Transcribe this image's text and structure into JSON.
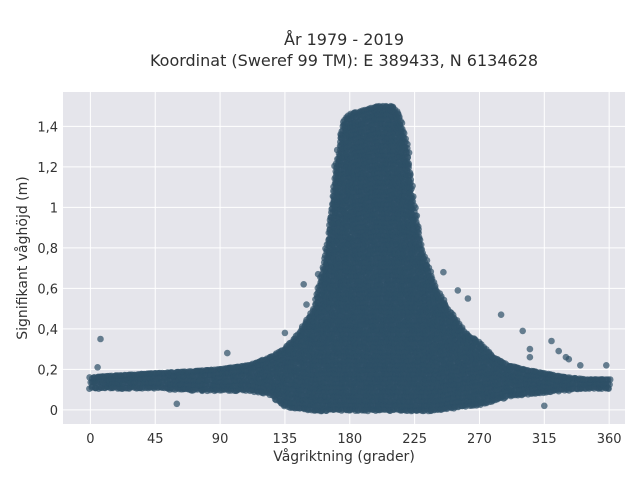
{
  "chart_data": {
    "type": "scatter",
    "title": "År 1979 - 2019",
    "subtitle": "Koordinat (Sweref 99 TM): E 389433, N 6134628",
    "xlabel": "Vågriktning (grader)",
    "ylabel": "Signifikant våghöjd (m)",
    "xlim": [
      -19,
      371
    ],
    "ylim": [
      -0.07,
      1.57
    ],
    "x_ticks": [
      0,
      45,
      90,
      135,
      180,
      225,
      270,
      315,
      360
    ],
    "x_tick_labels": [
      "0",
      "45",
      "90",
      "135",
      "180",
      "225",
      "270",
      "315",
      "360"
    ],
    "y_ticks": [
      0,
      0.2,
      0.4,
      0.6,
      0.8,
      1.0,
      1.2,
      1.4
    ],
    "y_tick_labels": [
      "0",
      "0,2",
      "0,4",
      "0,6",
      "0,8",
      "1",
      "1,2",
      "1,4"
    ],
    "grid": true,
    "background_color": "#e5e5eb",
    "marker_color": "#2e5066",
    "envelope": {
      "direction_deg": [
        0,
        20,
        45,
        70,
        90,
        110,
        125,
        135,
        145,
        155,
        160,
        165,
        170,
        175,
        180,
        190,
        200,
        210,
        215,
        220,
        225,
        230,
        240,
        250,
        260,
        270,
        280,
        290,
        300,
        315,
        330,
        345,
        360
      ],
      "max_height_m": [
        0.16,
        0.17,
        0.18,
        0.19,
        0.2,
        0.22,
        0.26,
        0.3,
        0.38,
        0.5,
        0.65,
        0.85,
        1.2,
        1.42,
        1.46,
        1.48,
        1.5,
        1.5,
        1.45,
        1.3,
        1.0,
        0.8,
        0.6,
        0.48,
        0.38,
        0.33,
        0.26,
        0.22,
        0.2,
        0.18,
        0.16,
        0.15,
        0.15
      ],
      "min_height_m": [
        0.11,
        0.11,
        0.11,
        0.1,
        0.1,
        0.1,
        0.08,
        0.02,
        0.01,
        0.0,
        0.0,
        0.0,
        0.0,
        0.0,
        0.0,
        0.0,
        0.0,
        0.0,
        0.0,
        0.0,
        0.0,
        0.0,
        0.0,
        0.01,
        0.02,
        0.03,
        0.05,
        0.07,
        0.08,
        0.09,
        0.1,
        0.11,
        0.11
      ]
    },
    "outliers": [
      {
        "x": 7,
        "y": 0.35
      },
      {
        "x": 5,
        "y": 0.21
      },
      {
        "x": 60,
        "y": 0.03
      },
      {
        "x": 95,
        "y": 0.28
      },
      {
        "x": 135,
        "y": 0.38
      },
      {
        "x": 148,
        "y": 0.62
      },
      {
        "x": 150,
        "y": 0.52
      },
      {
        "x": 158,
        "y": 0.67
      },
      {
        "x": 168,
        "y": 0.92
      },
      {
        "x": 245,
        "y": 0.68
      },
      {
        "x": 255,
        "y": 0.59
      },
      {
        "x": 262,
        "y": 0.55
      },
      {
        "x": 285,
        "y": 0.47
      },
      {
        "x": 300,
        "y": 0.39
      },
      {
        "x": 305,
        "y": 0.3
      },
      {
        "x": 305,
        "y": 0.26
      },
      {
        "x": 320,
        "y": 0.34
      },
      {
        "x": 325,
        "y": 0.29
      },
      {
        "x": 330,
        "y": 0.26
      },
      {
        "x": 332,
        "y": 0.25
      },
      {
        "x": 340,
        "y": 0.22
      },
      {
        "x": 358,
        "y": 0.22
      },
      {
        "x": 200,
        "y": 0.0
      },
      {
        "x": 315,
        "y": 0.02
      }
    ]
  }
}
